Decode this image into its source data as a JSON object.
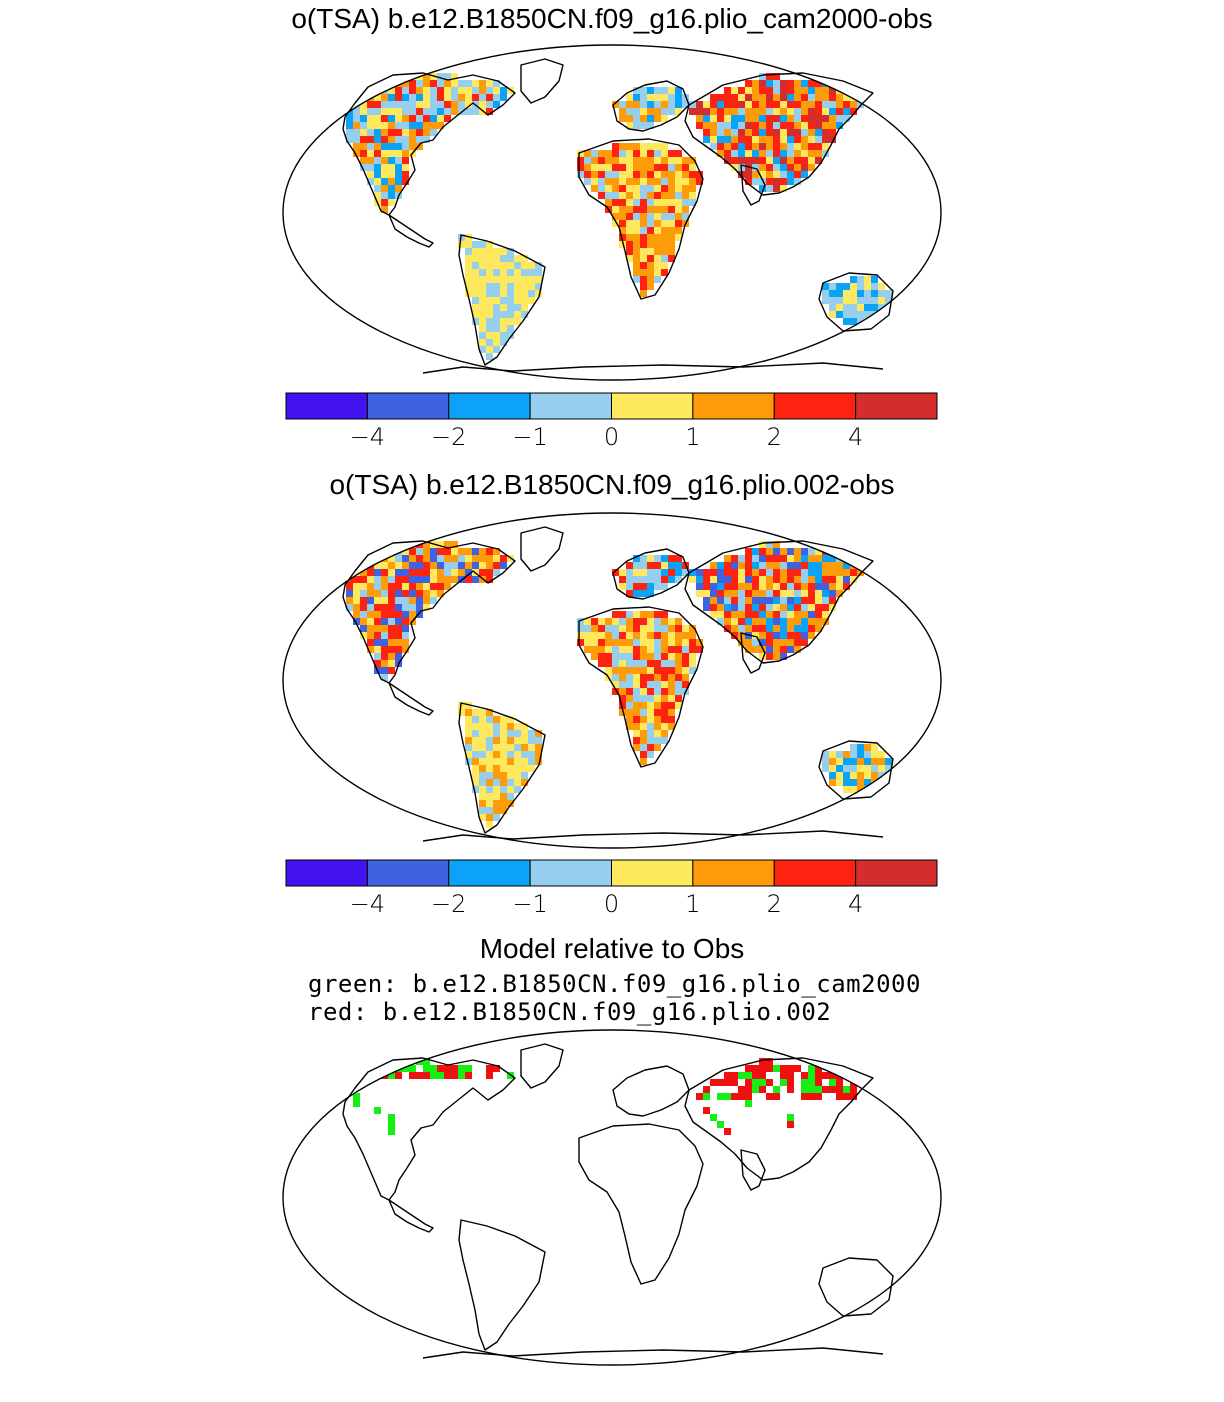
{
  "maps": [
    {
      "title": "o(TSA) b.e12.B1850CN.f09_g16.plio_cam2000-obs"
    },
    {
      "title": "o(TSA) b.e12.B1850CN.f09_g16.plio.002-obs"
    },
    {
      "title": "Model relative to Obs",
      "legend": [
        "green: b.e12.B1850CN.f09_g16.plio_cam2000",
        "red: b.e12.B1850CN.f09_g16.plio.002"
      ]
    }
  ],
  "colorbar": {
    "colors": [
      "#4212f0",
      "#3f62e0",
      "#0aa3f8",
      "#96cfee",
      "#fee95e",
      "#fe9b08",
      "#fe2210",
      "#d32d2e"
    ],
    "tick_labels": [
      "−4",
      "−2",
      "−1",
      "0",
      "1",
      "2",
      "4"
    ]
  },
  "comparison_colors": {
    "cam2000": "#14f014",
    "plio002": "#f01010"
  }
}
